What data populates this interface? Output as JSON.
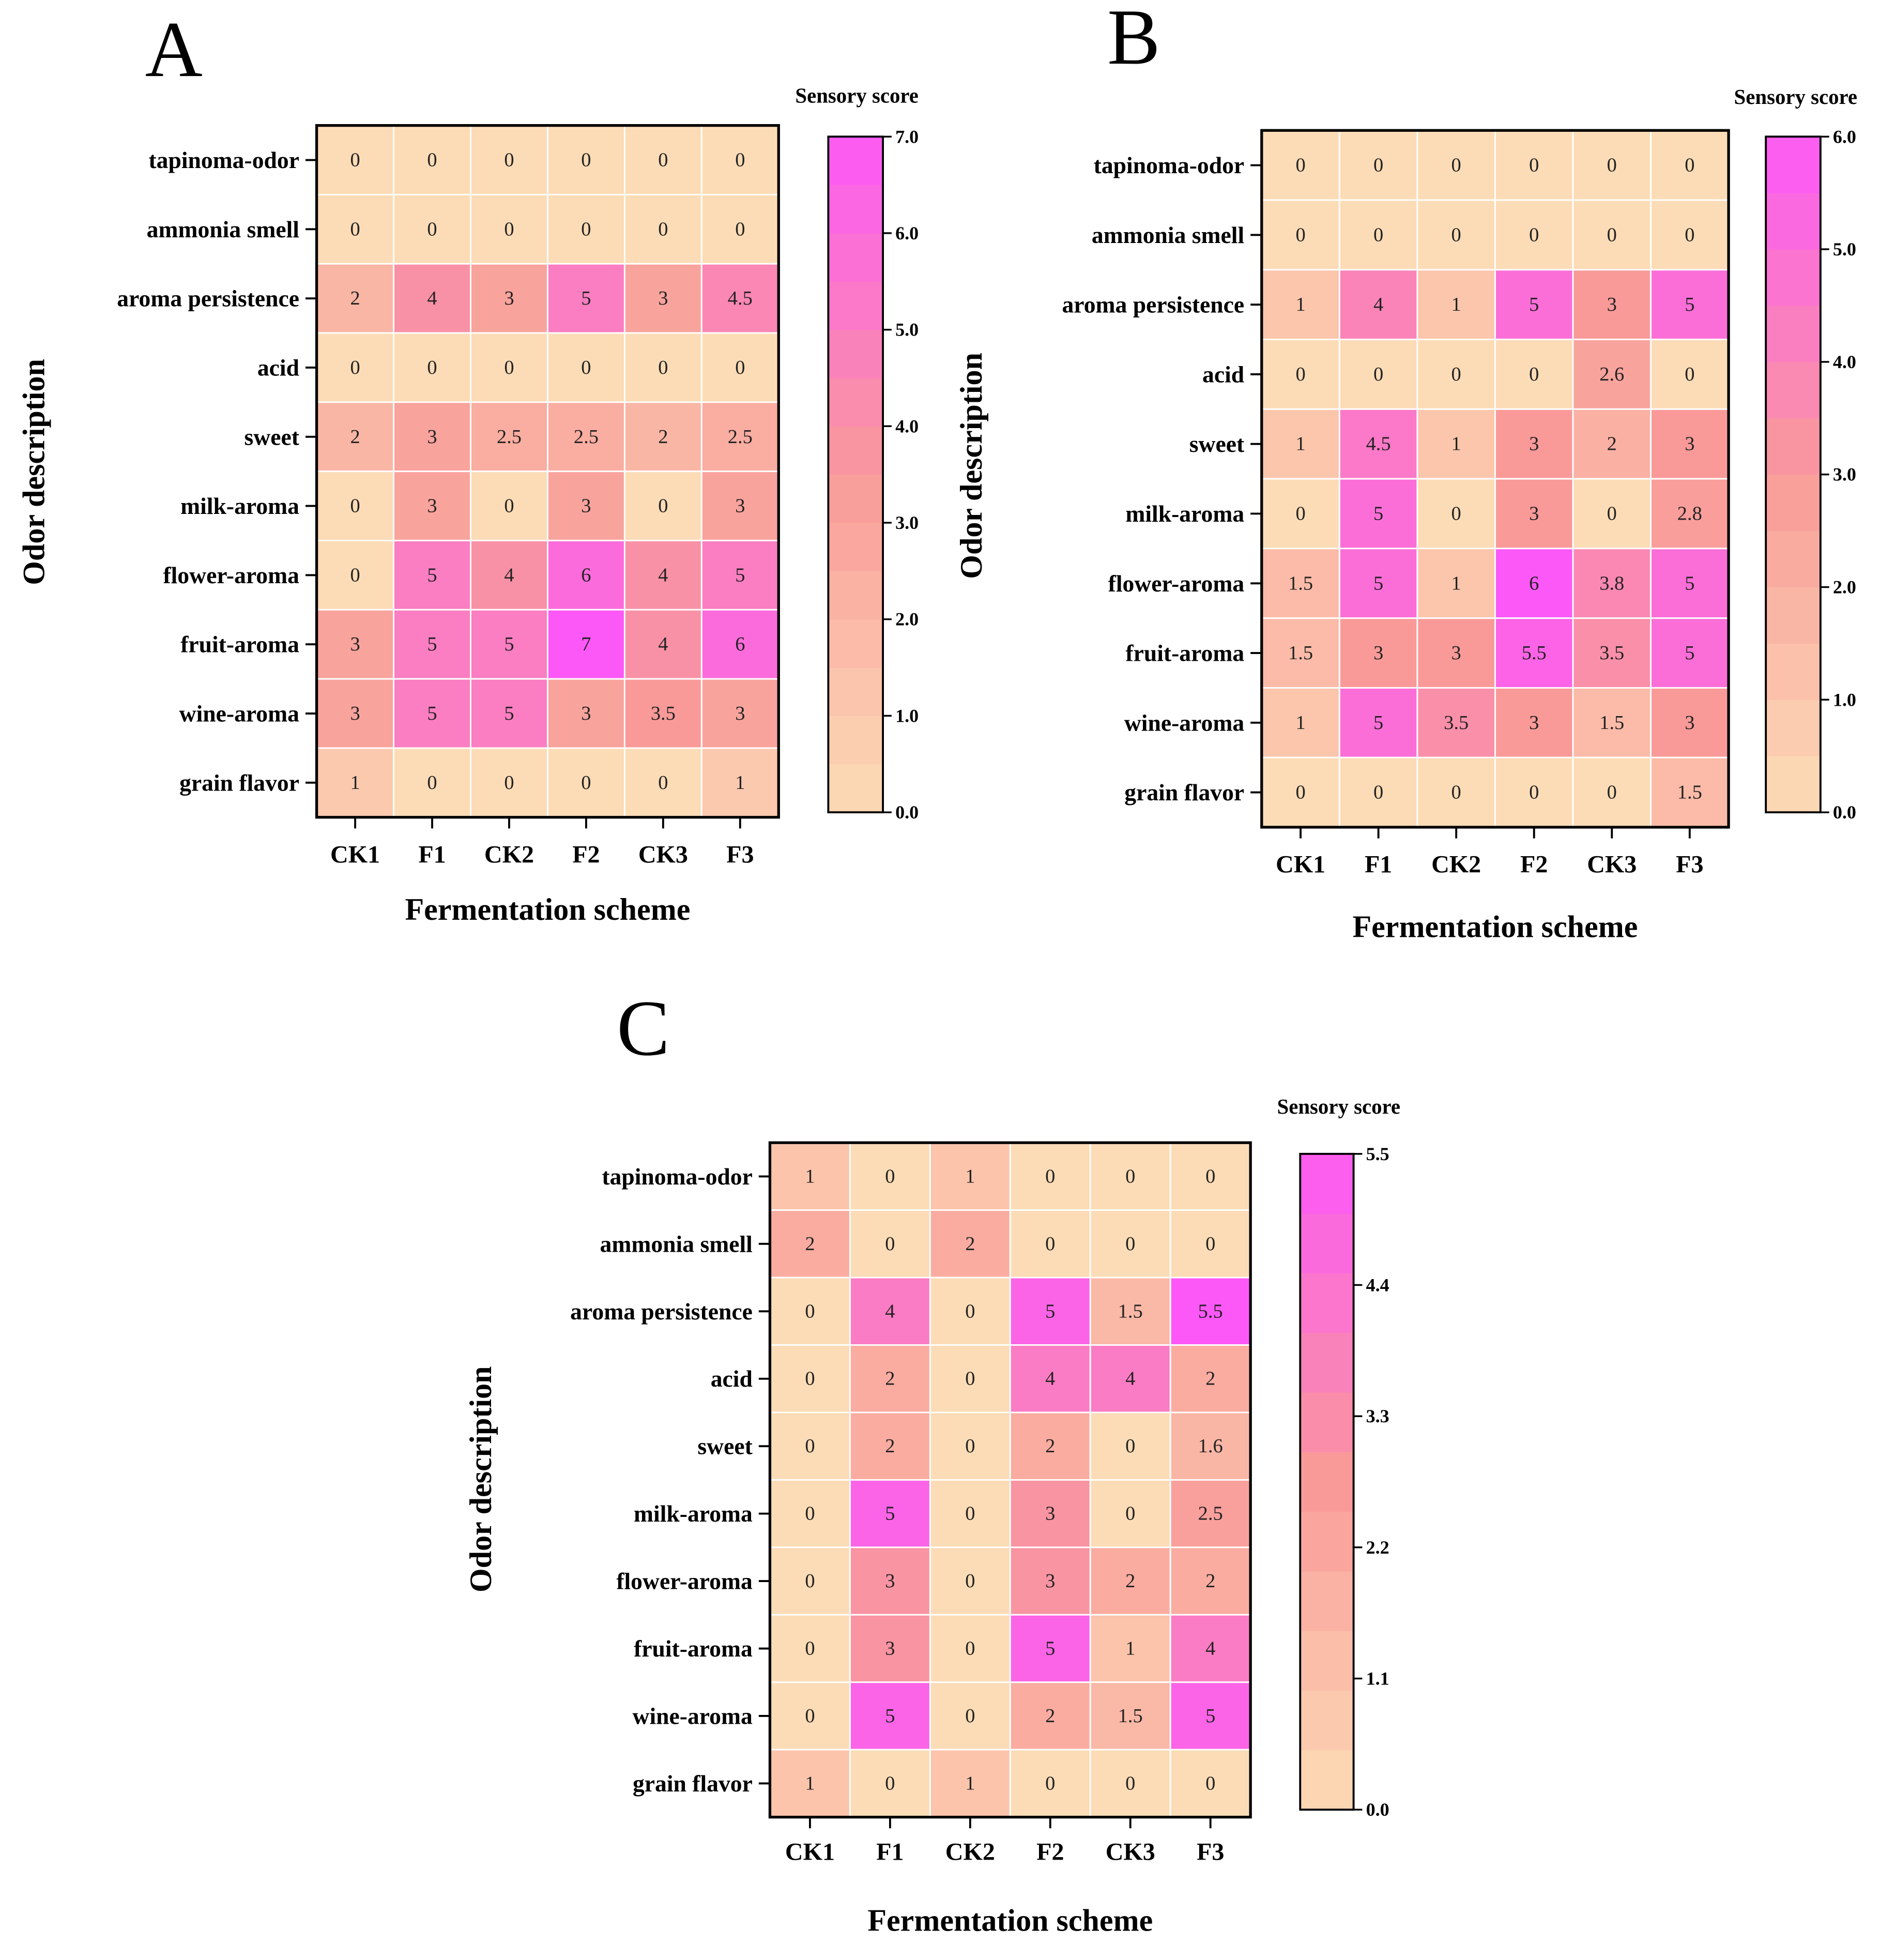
{
  "figure": {
    "colors": {
      "low": "#fcdcb6",
      "mid": "#f99a99",
      "high": "#fc58f7"
    },
    "legend_title": "Sensory score"
  },
  "chart_data": [
    {
      "panel": "A",
      "type": "heatmap",
      "xlabel": "Fermentation scheme",
      "ylabel": "Odor description",
      "x_categories": [
        "CK1",
        "F1",
        "CK2",
        "F2",
        "CK3",
        "F3"
      ],
      "y_categories": [
        "tapinoma-odor",
        "ammonia smell",
        "aroma persistence",
        "acid",
        "sweet",
        "milk-aroma",
        "flower-aroma",
        "fruit-aroma",
        "wine-aroma",
        "grain flavor"
      ],
      "values": [
        [
          "0",
          "0",
          "0",
          "0",
          "0",
          "0"
        ],
        [
          "0",
          "0",
          "0",
          "0",
          "0",
          "0"
        ],
        [
          "2",
          "4",
          "3",
          "5",
          "3",
          "4.5"
        ],
        [
          "0",
          "0",
          "0",
          "0",
          "0",
          "0"
        ],
        [
          "2",
          "3",
          "2.5",
          "2.5",
          "2",
          "2.5"
        ],
        [
          "0",
          "3",
          "0",
          "3",
          "0",
          "3"
        ],
        [
          "0",
          "5",
          "4",
          "6",
          "4",
          "5"
        ],
        [
          "3",
          "5",
          "5",
          "7",
          "4",
          "6"
        ],
        [
          "3",
          "5",
          "5",
          "3",
          "3.5",
          "3"
        ],
        [
          "1",
          "0",
          "0",
          "0",
          "0",
          "1"
        ]
      ],
      "colorbar": {
        "min": 0,
        "max": 7,
        "ticks": [
          "0.0",
          "1.0",
          "2.0",
          "3.0",
          "4.0",
          "5.0",
          "6.0",
          "7.0"
        ],
        "steps": 14
      }
    },
    {
      "panel": "B",
      "type": "heatmap",
      "xlabel": "Fermentation scheme",
      "ylabel": "Odor description",
      "x_categories": [
        "CK1",
        "F1",
        "CK2",
        "F2",
        "CK3",
        "F3"
      ],
      "y_categories": [
        "tapinoma-odor",
        "ammonia smell",
        "aroma persistence",
        "acid",
        "sweet",
        "milk-aroma",
        "flower-aroma",
        "fruit-aroma",
        "wine-aroma",
        "grain flavor"
      ],
      "values": [
        [
          "0",
          "0",
          "0",
          "0",
          "0",
          "0"
        ],
        [
          "0",
          "0",
          "0",
          "0",
          "0",
          "0"
        ],
        [
          "1",
          "4",
          "1",
          "5",
          "3",
          "5"
        ],
        [
          "0",
          "0",
          "0",
          "0",
          "2.6",
          "0"
        ],
        [
          "1",
          "4.5",
          "1",
          "3",
          "2",
          "3"
        ],
        [
          "0",
          "5",
          "0",
          "3",
          "0",
          "2.8"
        ],
        [
          "1.5",
          "5",
          "1",
          "6",
          "3.8",
          "5"
        ],
        [
          "1.5",
          "3",
          "3",
          "5.5",
          "3.5",
          "5"
        ],
        [
          "1",
          "5",
          "3.5",
          "3",
          "1.5",
          "3"
        ],
        [
          "0",
          "0",
          "0",
          "0",
          "0",
          "1.5"
        ]
      ],
      "colorbar": {
        "min": 0,
        "max": 6,
        "ticks": [
          "0.0",
          "1.0",
          "2.0",
          "3.0",
          "4.0",
          "5.0",
          "6.0"
        ],
        "steps": 12
      }
    },
    {
      "panel": "C",
      "type": "heatmap",
      "xlabel": "Fermentation scheme",
      "ylabel": "Odor description",
      "x_categories": [
        "CK1",
        "F1",
        "CK2",
        "F2",
        "CK3",
        "F3"
      ],
      "y_categories": [
        "tapinoma-odor",
        "ammonia smell",
        "aroma persistence",
        "acid",
        "sweet",
        "milk-aroma",
        "flower-aroma",
        "fruit-aroma",
        "wine-aroma",
        "grain flavor"
      ],
      "values": [
        [
          "1",
          "0",
          "1",
          "0",
          "0",
          "0"
        ],
        [
          "2",
          "0",
          "2",
          "0",
          "0",
          "0"
        ],
        [
          "0",
          "4",
          "0",
          "5",
          "1.5",
          "5.5"
        ],
        [
          "0",
          "2",
          "0",
          "4",
          "4",
          "2"
        ],
        [
          "0",
          "2",
          "0",
          "2",
          "0",
          "1.6"
        ],
        [
          "0",
          "5",
          "0",
          "3",
          "0",
          "2.5"
        ],
        [
          "0",
          "3",
          "0",
          "3",
          "2",
          "2"
        ],
        [
          "0",
          "3",
          "0",
          "5",
          "1",
          "4"
        ],
        [
          "0",
          "5",
          "0",
          "2",
          "1.5",
          "5"
        ],
        [
          "1",
          "0",
          "1",
          "0",
          "0",
          "0"
        ]
      ],
      "colorbar": {
        "min": 0,
        "max": 5.5,
        "ticks": [
          "0.0",
          "1.1",
          "2.2",
          "3.3",
          "4.4",
          "5.5"
        ],
        "steps": 11
      }
    }
  ]
}
